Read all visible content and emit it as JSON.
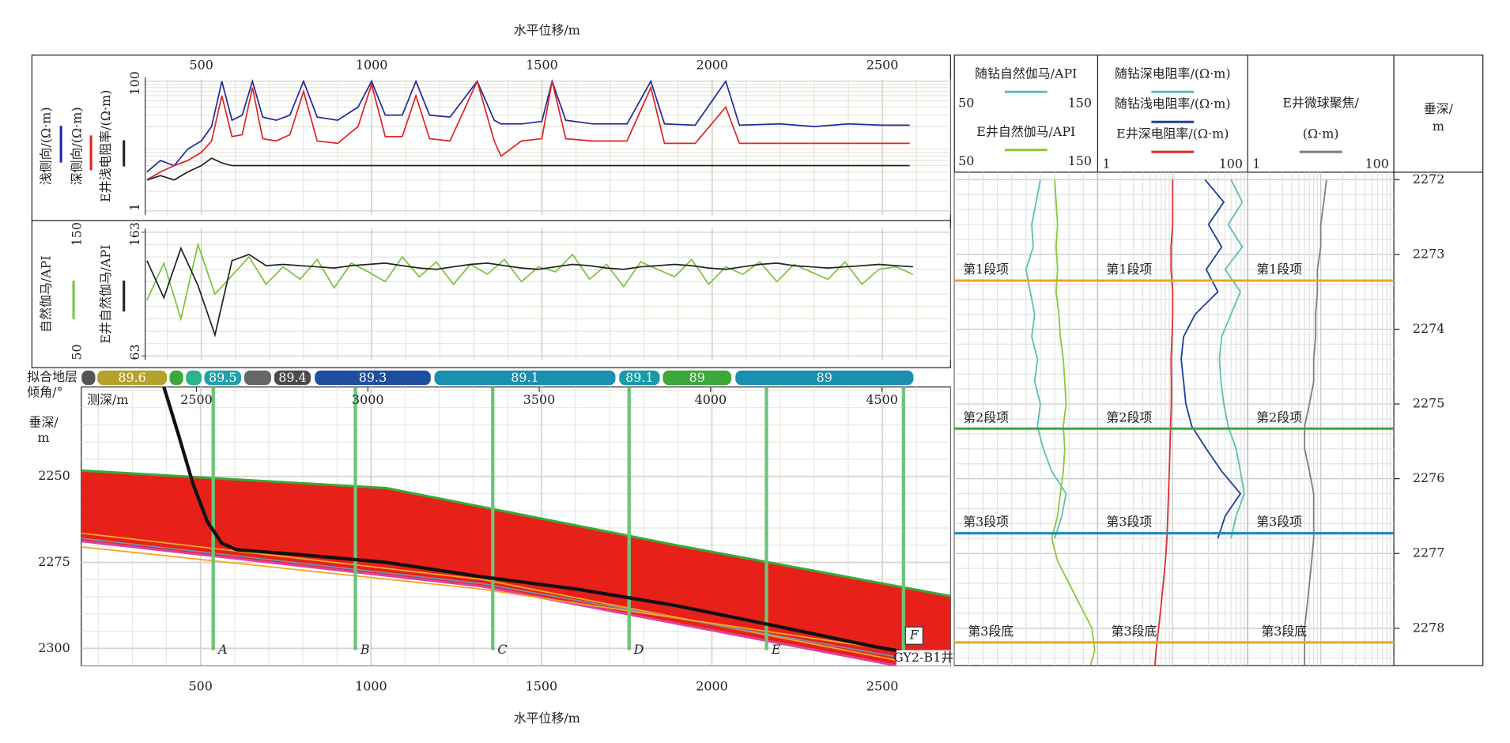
{
  "chart_data": [
    {
      "type": "line",
      "xlabel": "水平位移/m",
      "xlim": [
        335,
        2700
      ],
      "xticks": [
        500,
        1000,
        1500,
        2000,
        2500
      ],
      "log_y": true,
      "ylim": [
        1,
        100
      ],
      "yticks": [
        1,
        100
      ],
      "x": [
        340,
        380,
        420,
        460,
        500,
        530,
        560,
        590,
        620,
        650,
        680,
        720,
        760,
        800,
        840,
        900,
        960,
        1000,
        1040,
        1090,
        1130,
        1170,
        1230,
        1310,
        1360,
        1380,
        1440,
        1500,
        1530,
        1570,
        1650,
        1750,
        1820,
        1860,
        1950,
        2040,
        2080,
        2200,
        2300,
        2400,
        2500,
        2580
      ],
      "series": [
        {
          "name": "浅侧向/(Ω·m)",
          "color": "#1f2a9c",
          "values": [
            4,
            6,
            5,
            9,
            12,
            20,
            100,
            25,
            30,
            100,
            28,
            25,
            30,
            100,
            28,
            25,
            40,
            100,
            30,
            30,
            100,
            30,
            28,
            100,
            25,
            22,
            22,
            24,
            100,
            25,
            22,
            22,
            100,
            22,
            21,
            100,
            21,
            22,
            20,
            22,
            21,
            21
          ]
        },
        {
          "name": "深侧向/(Ω·m)",
          "color": "#e02424",
          "values": [
            3,
            4,
            5,
            6,
            8,
            12,
            60,
            14,
            15,
            80,
            13,
            12,
            15,
            70,
            12,
            11,
            20,
            90,
            14,
            14,
            60,
            13,
            12,
            100,
            12,
            7,
            12,
            13,
            100,
            13,
            12,
            12,
            80,
            11,
            11,
            40,
            11,
            11,
            11,
            11,
            11,
            11
          ]
        },
        {
          "name": "E井浅电阻率/(Ω·m)",
          "color": "#222222",
          "values": [
            3,
            3.5,
            3,
            4,
            5,
            6.5,
            5.5,
            5,
            5,
            5,
            5,
            5,
            5,
            5,
            5,
            5,
            5,
            5,
            5,
            5,
            5,
            5,
            5,
            5,
            5,
            5,
            5,
            5,
            5,
            5,
            5,
            5,
            5,
            5,
            5,
            5,
            5,
            5,
            5,
            5,
            5,
            5
          ]
        }
      ]
    },
    {
      "type": "line",
      "xlim": [
        335,
        2700
      ],
      "xticks": [
        500,
        1000,
        1500,
        2000,
        2500
      ],
      "ylim": [
        50,
        150
      ],
      "yticks": [
        50,
        150
      ],
      "y2lim": [
        63,
        163
      ],
      "y2ticks": [
        63,
        163
      ],
      "x": [
        340,
        390,
        440,
        490,
        540,
        590,
        640,
        690,
        740,
        790,
        840,
        890,
        940,
        990,
        1040,
        1090,
        1140,
        1190,
        1240,
        1290,
        1340,
        1390,
        1440,
        1490,
        1540,
        1590,
        1640,
        1690,
        1740,
        1790,
        1840,
        1890,
        1940,
        1990,
        2040,
        2090,
        2140,
        2190,
        2240,
        2290,
        2340,
        2390,
        2440,
        2490,
        2540,
        2590
      ],
      "series": [
        {
          "name": "自然伽马/API",
          "color": "#7cc242",
          "values": [
            95,
            125,
            80,
            140,
            100,
            115,
            130,
            108,
            122,
            112,
            128,
            105,
            125,
            118,
            110,
            130,
            114,
            126,
            108,
            124,
            116,
            128,
            110,
            122,
            118,
            132,
            112,
            124,
            106,
            126,
            120,
            114,
            128,
            108,
            122,
            116,
            126,
            110,
            124,
            118,
            112,
            126,
            108,
            120,
            122,
            116
          ]
        },
        {
          "name": "E井自然伽马/API",
          "color": "#222222",
          "axis": "y2",
          "values": [
            140,
            110,
            150,
            120,
            80,
            140,
            145,
            136,
            137,
            136,
            135,
            134,
            136,
            137,
            138,
            136,
            134,
            133,
            135,
            137,
            138,
            136,
            134,
            133,
            135,
            137,
            136,
            134,
            133,
            135,
            136,
            137,
            136,
            134,
            133,
            135,
            137,
            138,
            136,
            135,
            134,
            135,
            136,
            137,
            136,
            135
          ]
        }
      ]
    },
    {
      "type": "band",
      "label": [
        "拟合地层",
        "倾角/°"
      ],
      "xlim": [
        150,
        2700
      ],
      "segments": [
        {
          "start": 151,
          "end": 191,
          "value": null,
          "color": "#555555"
        },
        {
          "start": 197,
          "end": 401,
          "value": 89.6,
          "color": "#b5a22a"
        },
        {
          "start": 409,
          "end": 449,
          "value": null,
          "color": "#3aa83a"
        },
        {
          "start": 457,
          "end": 503,
          "value": null,
          "color": "#2bb38a"
        },
        {
          "start": 511,
          "end": 619,
          "value": 89.5,
          "color": "#1fa3a8"
        },
        {
          "start": 628,
          "end": 707,
          "value": null,
          "color": "#666666"
        },
        {
          "start": 716,
          "end": 823,
          "value": 89.4,
          "color": "#4a4a4a"
        },
        {
          "start": 835,
          "end": 1175,
          "value": 89.3,
          "color": "#1f4fa0"
        },
        {
          "start": 1186,
          "end": 1717,
          "value": 89.1,
          "color": "#1a8fb0"
        },
        {
          "start": 1728,
          "end": 1847,
          "value": 89.1,
          "color": "#1a9aa8"
        },
        {
          "start": 1856,
          "end": 2057,
          "value": 89,
          "color": "#3aa83a"
        },
        {
          "start": 2069,
          "end": 2591,
          "value": 89,
          "color": "#1a8fb0"
        }
      ]
    },
    {
      "type": "section",
      "xlabel": "水平位移/m",
      "x2label": "测深/m",
      "ylabel": [
        "垂深/",
        "m"
      ],
      "xlim": [
        150,
        2700
      ],
      "xticks": [
        500,
        1000,
        1500,
        2000,
        2500
      ],
      "x2lim": [
        2164,
        4700
      ],
      "x2ticks": [
        2500,
        3000,
        3500,
        4000,
        4500
      ],
      "ylim": [
        2224,
        2305
      ],
      "yticks": [
        2250,
        2275,
        2300
      ],
      "y_inverted": true,
      "formation": {
        "color": "#e8201a",
        "top": {
          "color": "#3aa83a",
          "x": [
            150,
            1045,
            1896,
            2700
          ],
          "y": [
            2248.3,
            2253.4,
            2270,
            2284.8
          ]
        },
        "bottom": {
          "color": "#e040a0",
          "x": [
            150,
            1328,
            2700
          ],
          "y": [
            2268.8,
            2282,
            2308
          ]
        }
      },
      "lines": [
        {
          "color": "#f5a623",
          "x": [
            150,
            1328,
            2700
          ],
          "y": [
            2266.5,
            2280,
            2306.5
          ]
        },
        {
          "color": "#7a8fa8",
          "x": [
            150,
            1328,
            2700
          ],
          "y": [
            2268,
            2281.2,
            2305.2
          ]
        },
        {
          "color": "#f5a623",
          "x": [
            150,
            1328,
            2700
          ],
          "y": [
            2270.5,
            2282.8,
            2303
          ]
        }
      ],
      "trajectory": {
        "name": "GY2-B1井",
        "color": "#111111",
        "x": [
          392,
          435,
          477,
          520,
          562,
          605,
          761,
          1045,
          1328,
          1612,
          1896,
          2179,
          2463,
          2696
        ],
        "y": [
          2223.9,
          2237.9,
          2252,
          2263.2,
          2269.4,
          2271.3,
          2272.5,
          2275,
          2279.2,
          2282.9,
          2287.6,
          2293.3,
          2299.2,
          2303.4
        ]
      },
      "markers": [
        {
          "label": "A",
          "x": 537
        },
        {
          "label": "B",
          "x": 954
        },
        {
          "label": "C",
          "x": 1357
        },
        {
          "label": "D",
          "x": 1757
        },
        {
          "label": "E",
          "x": 2160
        },
        {
          "label": "F",
          "x": 2562
        }
      ],
      "marker_color": "#6cc47a"
    },
    {
      "type": "log_tracks",
      "ylabel": [
        "垂深/",
        "m"
      ],
      "ylim": [
        2271.9,
        2278.5
      ],
      "yticks": [
        2272,
        2273,
        2274,
        2275,
        2276,
        2277,
        2278
      ],
      "depth": [
        2272.0,
        2272.3,
        2272.6,
        2272.9,
        2273.2,
        2273.5,
        2273.8,
        2274.1,
        2274.4,
        2274.7,
        2275.0,
        2275.3,
        2275.6,
        2275.9,
        2276.2,
        2276.5,
        2276.8,
        2277.1,
        2277.4,
        2277.7,
        2278.0,
        2278.3,
        2278.5
      ],
      "tracks": [
        {
          "log": false,
          "curves": [
            {
              "name": "随钻自然伽马/API",
              "color": "#5cc0b8",
              "xlim": [
                50,
                150
              ],
              "values": [
                110,
                107,
                104,
                105,
                100,
                103,
                106,
                104,
                108,
                106,
                110,
                108,
                112,
                118,
                128,
                125,
                120,
                null,
                null,
                null,
                null,
                null,
                null
              ]
            },
            {
              "name": "E井自然伽马/API",
              "color": "#8cc83c",
              "xlim": [
                50,
                150
              ],
              "values": [
                120,
                121,
                122,
                121,
                122,
                121,
                123,
                124,
                126,
                127,
                128,
                126,
                127,
                126,
                124,
                122,
                118,
                122,
                130,
                138,
                146,
                148,
                145
              ]
            }
          ]
        },
        {
          "log": true,
          "xlim": [
            1,
            100
          ],
          "curves": [
            {
              "name": "随钻深电阻率/(Ω·m)",
              "color": "#5cc0b8",
              "values": [
                60,
                85,
                55,
                85,
                50,
                80,
                60,
                45,
                42,
                44,
                48,
                55,
                70,
                80,
                90,
                70,
                60,
                null,
                null,
                null,
                null,
                null,
                null
              ]
            },
            {
              "name": "随钻浅电阻率/(Ω·m)",
              "color": "#1f3fa0",
              "values": [
                27,
                48,
                30,
                45,
                28,
                40,
                20,
                14,
                13,
                14,
                15,
                18,
                28,
                45,
                80,
                50,
                40,
                null,
                null,
                null,
                null,
                null,
                null
              ]
            },
            {
              "name": "E井深电阻率/(Ω·m)",
              "color": "#e03030",
              "values": [
                10,
                10,
                10,
                9.5,
                9.5,
                10,
                10,
                9.8,
                9.5,
                9.6,
                9.6,
                9.4,
                9.2,
                9,
                8.8,
                8.6,
                8.4,
                8,
                7.5,
                7,
                6.5,
                6,
                5.8
              ]
            }
          ]
        },
        {
          "log": true,
          "xlim": [
            1,
            100
          ],
          "curves": [
            {
              "name": [
                "E井微球聚焦/",
                "(Ω·m)"
              ],
              "color": "#808080",
              "values": [
                12,
                11,
                10,
                10,
                9,
                9,
                8.5,
                8.5,
                8,
                8,
                7,
                6,
                6,
                7,
                8,
                8,
                8,
                7.5,
                7,
                6.5,
                6,
                6,
                6
              ]
            }
          ]
        }
      ],
      "zones": [
        {
          "label": "第1段项",
          "depth": 2273.35,
          "color": "#e8a820"
        },
        {
          "label": "第2段项",
          "depth": 2275.33,
          "color": "#3aa83a"
        },
        {
          "label": "第3段项",
          "depth": 2276.73,
          "color": "#1a8ac0"
        },
        {
          "label": "第3段底",
          "depth": 2278.19,
          "color": "#e8a820"
        }
      ]
    }
  ]
}
